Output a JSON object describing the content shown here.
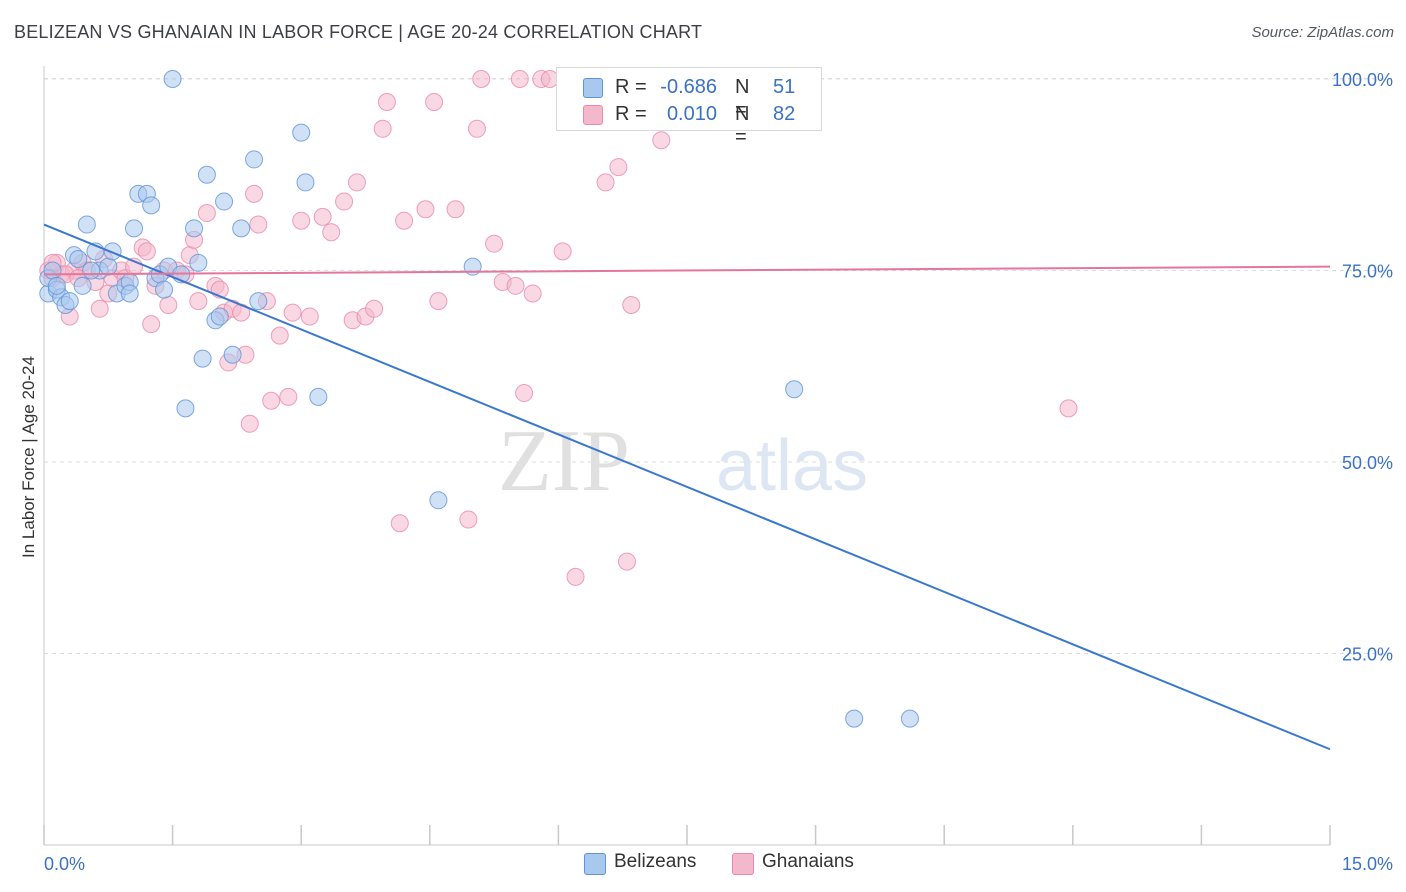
{
  "header": {
    "title": "BELIZEAN VS GHANAIAN IN LABOR FORCE | AGE 20-24 CORRELATION CHART",
    "source": "Source: ZipAtlas.com"
  },
  "watermark": {
    "part1": "ZIP",
    "part2": "atlas"
  },
  "legend": {
    "rows": [
      {
        "r_label": "R =",
        "r_value": "-0.686",
        "n_label": "N =",
        "n_value": "51"
      },
      {
        "r_label": "R =",
        "r_value": "0.010",
        "n_label": "N =",
        "n_value": "82"
      }
    ]
  },
  "bottom_legend": {
    "items": [
      "Belizeans",
      "Ghanaians"
    ]
  },
  "colors": {
    "blue_fill": "#a9c8ee",
    "blue_stroke": "#5f93d8",
    "blue_line": "#3a78d0",
    "pink_fill": "#f4b8cc",
    "pink_stroke": "#e98aaa",
    "pink_line": "#e4759b",
    "axis_label": "#3b72c4"
  },
  "chart_data": {
    "type": "scatter",
    "title": "BELIZEAN VS GHANAIAN IN LABOR FORCE | AGE 20-24 CORRELATION CHART",
    "xlabel": "",
    "ylabel": "In Labor Force | Age 20-24",
    "xlim": [
      0,
      15
    ],
    "ylim": [
      0,
      105
    ],
    "x_tick_labels": [
      {
        "value": 0,
        "label": "0.0%"
      },
      {
        "value": 15,
        "label": "15.0%"
      }
    ],
    "y_tick_labels": [
      {
        "value": 25,
        "label": "25.0%"
      },
      {
        "value": 50,
        "label": "50.0%"
      },
      {
        "value": 75,
        "label": "75.0%"
      },
      {
        "value": 100,
        "label": "100.0%"
      }
    ],
    "grid": true,
    "legend_position": "top-center",
    "series": [
      {
        "name": "Belizeans",
        "r": -0.686,
        "n": 51,
        "trend": {
          "x": [
            0,
            15
          ],
          "y": [
            81,
            12.5
          ]
        },
        "points": [
          [
            0.05,
            72
          ],
          [
            0.05,
            74
          ],
          [
            0.1,
            75
          ],
          [
            0.15,
            72.5
          ],
          [
            0.2,
            71.5
          ],
          [
            0.25,
            70.5
          ],
          [
            0.3,
            71
          ],
          [
            0.35,
            77
          ],
          [
            0.4,
            76.5
          ],
          [
            0.45,
            73
          ],
          [
            0.5,
            81
          ],
          [
            0.6,
            77.5
          ],
          [
            0.65,
            75
          ],
          [
            0.75,
            75.5
          ],
          [
            0.85,
            72
          ],
          [
            0.95,
            73
          ],
          [
            1.0,
            73.5
          ],
          [
            1.05,
            80.5
          ],
          [
            1.1,
            85
          ],
          [
            1.2,
            85
          ],
          [
            1.25,
            83.5
          ],
          [
            1.3,
            74
          ],
          [
            1.35,
            74.5
          ],
          [
            1.4,
            72.5
          ],
          [
            1.45,
            75.5
          ],
          [
            1.5,
            100
          ],
          [
            1.6,
            74.5
          ],
          [
            1.65,
            57
          ],
          [
            1.75,
            80.5
          ],
          [
            1.8,
            76
          ],
          [
            1.85,
            63.5
          ],
          [
            1.9,
            87.5
          ],
          [
            2.0,
            68.5
          ],
          [
            2.05,
            69
          ],
          [
            2.1,
            84
          ],
          [
            2.2,
            64
          ],
          [
            2.3,
            80.5
          ],
          [
            2.45,
            89.5
          ],
          [
            2.5,
            71
          ],
          [
            3.0,
            93
          ],
          [
            3.05,
            86.5
          ],
          [
            3.2,
            58.5
          ],
          [
            4.6,
            45
          ],
          [
            5.0,
            75.5
          ],
          [
            8.75,
            59.5
          ],
          [
            9.45,
            16.5
          ],
          [
            10.1,
            16.5
          ],
          [
            0.15,
            73
          ],
          [
            0.55,
            75
          ],
          [
            1.0,
            72
          ],
          [
            0.8,
            77.5
          ]
        ]
      },
      {
        "name": "Ghanaians",
        "r": 0.01,
        "n": 82,
        "trend": {
          "x": [
            0,
            15
          ],
          "y": [
            74.5,
            75.5
          ]
        },
        "points": [
          [
            0.05,
            75
          ],
          [
            0.1,
            74
          ],
          [
            0.15,
            76
          ],
          [
            0.2,
            74.5
          ],
          [
            0.3,
            69
          ],
          [
            0.35,
            75
          ],
          [
            0.45,
            76
          ],
          [
            0.5,
            75
          ],
          [
            0.6,
            73.5
          ],
          [
            0.65,
            70
          ],
          [
            0.7,
            76.5
          ],
          [
            0.8,
            74
          ],
          [
            0.9,
            75
          ],
          [
            0.95,
            74
          ],
          [
            1.05,
            75.5
          ],
          [
            1.15,
            78
          ],
          [
            1.2,
            77.5
          ],
          [
            1.25,
            68
          ],
          [
            1.4,
            75
          ],
          [
            1.45,
            70.5
          ],
          [
            1.55,
            75
          ],
          [
            1.65,
            74.5
          ],
          [
            1.7,
            77
          ],
          [
            1.75,
            79
          ],
          [
            1.8,
            71
          ],
          [
            1.9,
            82.5
          ],
          [
            2.0,
            73
          ],
          [
            2.05,
            72.5
          ],
          [
            2.1,
            69.5
          ],
          [
            2.15,
            63
          ],
          [
            2.2,
            70
          ],
          [
            2.3,
            69.5
          ],
          [
            2.35,
            64
          ],
          [
            2.4,
            55
          ],
          [
            2.45,
            85
          ],
          [
            2.5,
            81
          ],
          [
            2.6,
            71
          ],
          [
            2.65,
            58
          ],
          [
            2.75,
            66.5
          ],
          [
            2.85,
            58.5
          ],
          [
            2.9,
            69.5
          ],
          [
            3.0,
            81.5
          ],
          [
            3.1,
            69
          ],
          [
            3.25,
            82
          ],
          [
            3.35,
            80
          ],
          [
            3.5,
            84
          ],
          [
            3.6,
            68.5
          ],
          [
            3.65,
            86.5
          ],
          [
            3.75,
            69
          ],
          [
            3.85,
            70
          ],
          [
            3.95,
            93.5
          ],
          [
            4.0,
            97
          ],
          [
            4.15,
            42
          ],
          [
            4.2,
            81.5
          ],
          [
            4.45,
            83
          ],
          [
            4.55,
            97
          ],
          [
            4.6,
            71
          ],
          [
            4.8,
            83
          ],
          [
            4.95,
            42.5
          ],
          [
            5.05,
            93.5
          ],
          [
            5.1,
            100
          ],
          [
            5.25,
            78.5
          ],
          [
            5.35,
            73.5
          ],
          [
            5.5,
            73
          ],
          [
            5.55,
            100
          ],
          [
            5.6,
            59
          ],
          [
            5.7,
            72
          ],
          [
            5.8,
            100
          ],
          [
            5.9,
            100
          ],
          [
            6.05,
            77.5
          ],
          [
            6.2,
            35
          ],
          [
            6.55,
            86.5
          ],
          [
            6.7,
            88.5
          ],
          [
            6.8,
            37
          ],
          [
            6.85,
            70.5
          ],
          [
            7.2,
            92
          ],
          [
            11.95,
            57
          ],
          [
            0.1,
            76
          ],
          [
            0.25,
            74.5
          ],
          [
            0.4,
            74
          ],
          [
            0.75,
            72
          ],
          [
            1.3,
            73
          ]
        ]
      }
    ]
  }
}
